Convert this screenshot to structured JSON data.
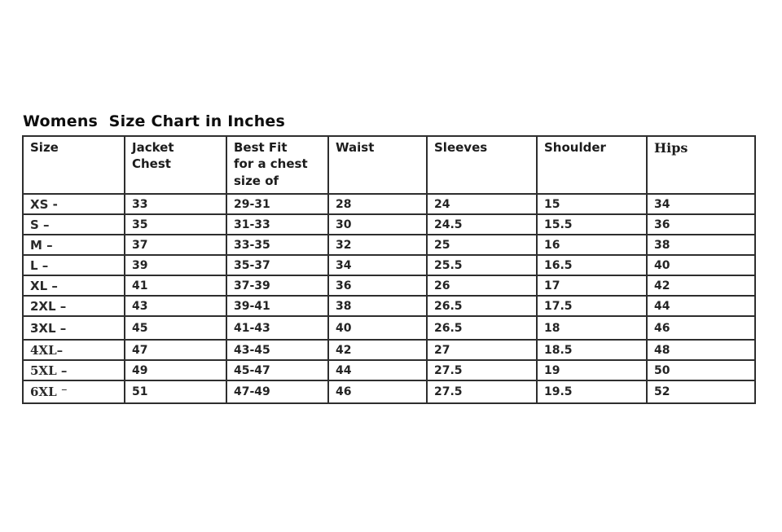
{
  "title": "Womens  Size Chart in Inches",
  "chart_data": {
    "type": "table",
    "title": "Womens  Size Chart in Inches",
    "units": "inches",
    "columns": [
      "Size",
      "Jacket Chest",
      "Best Fit for a chest size of",
      "Waist",
      "Sleeves",
      "Shoulder",
      "Hips"
    ],
    "rows": [
      [
        "XS -",
        "33",
        "29-31",
        "28",
        "24",
        "15",
        "34"
      ],
      [
        "S –",
        "35",
        "31-33",
        "30",
        "24.5",
        "15.5",
        "36"
      ],
      [
        "M –",
        "37",
        "33-35",
        "32",
        "25",
        "16",
        "38"
      ],
      [
        "L –",
        "39",
        "35-37",
        "34",
        "25.5",
        "16.5",
        "40"
      ],
      [
        "XL –",
        "41",
        "37-39",
        "36",
        "26",
        "17",
        "42"
      ],
      [
        "2XL –",
        "43",
        "39-41",
        "38",
        "26.5",
        "17.5",
        "44"
      ],
      [
        "3XL –",
        "45",
        "41-43",
        "40",
        "26.5",
        "18",
        "46"
      ],
      [
        "4XL–",
        "47",
        "43-45",
        "42",
        "27",
        "18.5",
        "48"
      ],
      [
        "5XL –",
        "49",
        "45-47",
        "44",
        "27.5",
        "19",
        "50"
      ],
      [
        "6XL ⁻",
        "51",
        "47-49",
        "46",
        "27.5",
        "19.5",
        "52"
      ]
    ]
  },
  "colors": {
    "text": "#1f1f1f",
    "border": "#2e2e2e",
    "background": "#ffffff"
  }
}
